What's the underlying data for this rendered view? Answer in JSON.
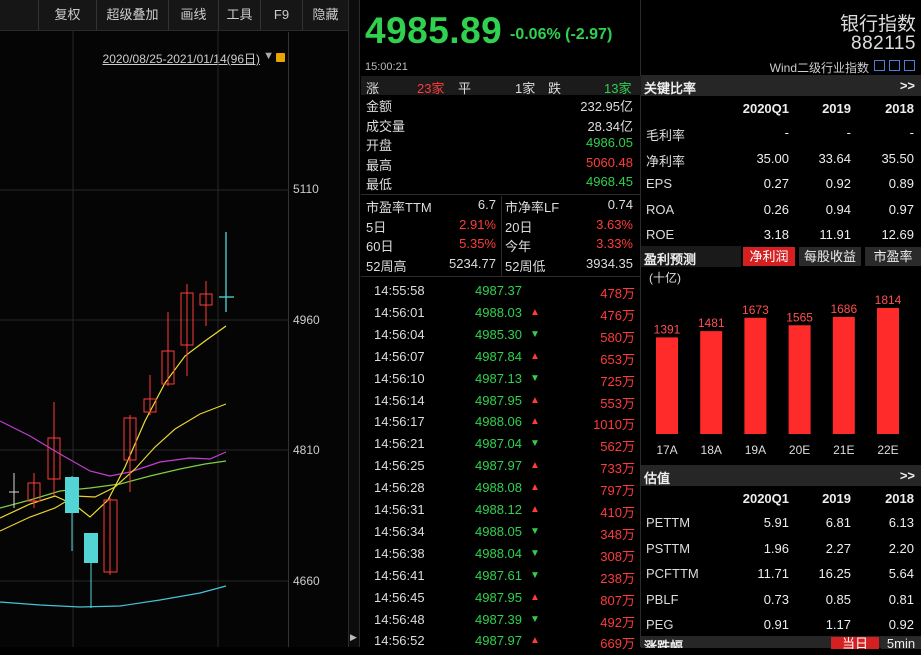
{
  "toolbar": {
    "items": [
      "复权",
      "超级叠加",
      "画线",
      "工具",
      "F9",
      "隐藏"
    ]
  },
  "chart": {
    "range_text": "2020/08/25-2021/01/14(96日)",
    "price_ticks": [
      "5110",
      "4960",
      "4810",
      "4660"
    ]
  },
  "quote": {
    "last_price": "4985.89",
    "change": "-0.06% (-2.97)",
    "time": "15:00:21",
    "breadth": {
      "up_label": "涨",
      "up_count": "23家",
      "flat_label": "平",
      "flat_count": "1家",
      "down_label": "跌",
      "down_count": "13家"
    },
    "rows": [
      {
        "label": "金额",
        "value": "232.95亿",
        "color": "#dddddd"
      },
      {
        "label": "成交量",
        "value": "28.34亿",
        "color": "#dddddd"
      },
      {
        "label": "开盘",
        "value": "4986.05",
        "color": "#2fd14f"
      },
      {
        "label": "最高",
        "value": "5060.48",
        "color": "#ff3b3b"
      },
      {
        "label": "最低",
        "value": "4968.45",
        "color": "#2fd14f"
      }
    ],
    "valuation_rows": [
      {
        "l1": "市盈率TTM",
        "v1": "6.7",
        "l2": "市净率LF",
        "v2": "0.74",
        "c1": "#dddddd",
        "c2": "#dddddd"
      },
      {
        "l1": "5日",
        "v1": "2.91%",
        "l2": "20日",
        "v2": "3.63%",
        "c1": "#ff3b3b",
        "c2": "#ff3b3b"
      },
      {
        "l1": "60日",
        "v1": "5.35%",
        "l2": "今年",
        "v2": "3.33%",
        "c1": "#ff3b3b",
        "c2": "#ff3b3b"
      },
      {
        "l1": "52周高",
        "v1": "5234.77",
        "l2": "52周低",
        "v2": "3934.35",
        "c1": "#dddddd",
        "c2": "#dddddd"
      }
    ],
    "ticks": [
      {
        "time": "14:55:58",
        "price": "4987.37",
        "dir": "",
        "vol": "478万"
      },
      {
        "time": "14:56:01",
        "price": "4988.03",
        "dir": "up",
        "vol": "476万"
      },
      {
        "time": "14:56:04",
        "price": "4985.30",
        "dir": "down",
        "vol": "580万"
      },
      {
        "time": "14:56:07",
        "price": "4987.84",
        "dir": "up",
        "vol": "653万"
      },
      {
        "time": "14:56:10",
        "price": "4987.13",
        "dir": "down",
        "vol": "725万"
      },
      {
        "time": "14:56:14",
        "price": "4987.95",
        "dir": "up",
        "vol": "553万"
      },
      {
        "time": "14:56:17",
        "price": "4988.06",
        "dir": "up",
        "vol": "1010万"
      },
      {
        "time": "14:56:21",
        "price": "4987.04",
        "dir": "down",
        "vol": "562万"
      },
      {
        "time": "14:56:25",
        "price": "4987.97",
        "dir": "up",
        "vol": "733万"
      },
      {
        "time": "14:56:28",
        "price": "4988.08",
        "dir": "up",
        "vol": "797万"
      },
      {
        "time": "14:56:31",
        "price": "4988.12",
        "dir": "up",
        "vol": "410万"
      },
      {
        "time": "14:56:34",
        "price": "4988.05",
        "dir": "down",
        "vol": "348万"
      },
      {
        "time": "14:56:38",
        "price": "4988.04",
        "dir": "down",
        "vol": "308万"
      },
      {
        "time": "14:56:41",
        "price": "4987.61",
        "dir": "down",
        "vol": "238万"
      },
      {
        "time": "14:56:45",
        "price": "4987.95",
        "dir": "up",
        "vol": "807万"
      },
      {
        "time": "14:56:48",
        "price": "4987.39",
        "dir": "down",
        "vol": "492万"
      },
      {
        "time": "14:56:52",
        "price": "4987.97",
        "dir": "up",
        "vol": "669万"
      }
    ]
  },
  "info": {
    "index_name": "银行指数",
    "index_code": "882115",
    "wind_label": "Wind二级行业指数",
    "key_ratios": {
      "title": "关键比率",
      "more": ">>",
      "columns": [
        "2020Q1",
        "2019",
        "2018"
      ],
      "rows": [
        {
          "label": "毛利率",
          "values": [
            "-",
            "-",
            "-"
          ]
        },
        {
          "label": "净利率",
          "values": [
            "35.00",
            "33.64",
            "35.50"
          ]
        },
        {
          "label": "EPS",
          "values": [
            "0.27",
            "0.92",
            "0.89"
          ]
        },
        {
          "label": "ROA",
          "values": [
            "0.26",
            "0.94",
            "0.97"
          ]
        },
        {
          "label": "ROE",
          "values": [
            "3.18",
            "11.91",
            "12.69"
          ]
        }
      ]
    },
    "forecast": {
      "title": "盈利预测",
      "tabs": [
        "净利润",
        "每股收益",
        "市盈率"
      ],
      "active_tab": 0,
      "unit": "(十亿)"
    },
    "valuation": {
      "title": "估值",
      "more": ">>",
      "columns": [
        "2020Q1",
        "2019",
        "2018"
      ],
      "rows": [
        {
          "label": "PETTM",
          "values": [
            "5.91",
            "6.81",
            "6.13"
          ]
        },
        {
          "label": "PSTTM",
          "values": [
            "1.96",
            "2.27",
            "2.20"
          ]
        },
        {
          "label": "PCFTTM",
          "values": [
            "11.71",
            "16.25",
            "5.64"
          ]
        },
        {
          "label": "PBLF",
          "values": [
            "0.73",
            "0.85",
            "0.81"
          ]
        },
        {
          "label": "PEG",
          "values": [
            "0.91",
            "1.17",
            "0.92"
          ]
        }
      ]
    },
    "bottom": {
      "title": "涨跌幅",
      "tab1": "当日",
      "tab2": "5min"
    }
  },
  "chart_data": {
    "type": "bar",
    "categories": [
      "17A",
      "18A",
      "19A",
      "20E",
      "21E",
      "22E"
    ],
    "values": [
      1391,
      1481,
      1673,
      1565,
      1686,
      1814
    ],
    "ylim": [
      0,
      1900
    ],
    "bar_color": "#ff2a2a"
  }
}
